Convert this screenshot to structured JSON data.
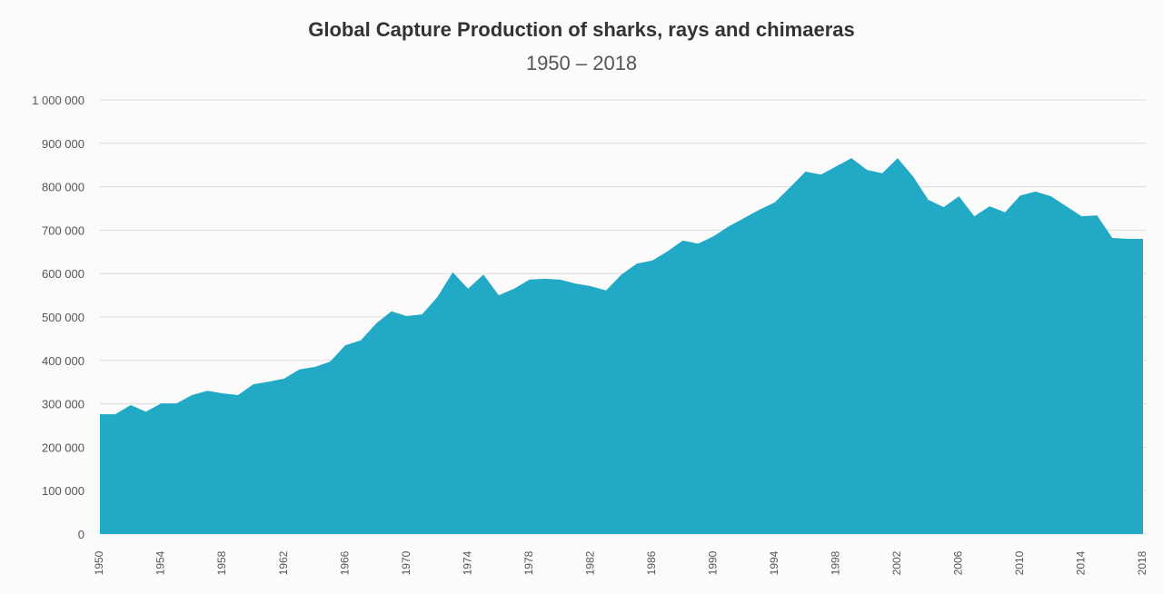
{
  "chart_data": {
    "type": "area",
    "title": "Global Capture Production of sharks, rays and chimaeras",
    "subtitle": "1950 – 2018",
    "xlabel": "",
    "ylabel": "",
    "xlim": [
      1950,
      2018
    ],
    "ylim": [
      0,
      1000000
    ],
    "grid": true,
    "color": "#22a9c5",
    "yticks": [
      0,
      100000,
      200000,
      300000,
      400000,
      500000,
      600000,
      700000,
      800000,
      900000,
      1000000
    ],
    "ytick_labels": [
      "0",
      "100 000",
      "200 000",
      "300 000",
      "400 000",
      "500 000",
      "600 000",
      "700 000",
      "800 000",
      "900 000",
      "1 000 000"
    ],
    "xticks": [
      1950,
      1954,
      1958,
      1962,
      1966,
      1970,
      1974,
      1978,
      1982,
      1986,
      1990,
      1994,
      1998,
      2002,
      2006,
      2010,
      2014,
      2018
    ],
    "xtick_labels": [
      "1950",
      "1954",
      "1958",
      "1962",
      "1966",
      "1970",
      "1974",
      "1978",
      "1982",
      "1986",
      "1990",
      "1994",
      "1998",
      "2002",
      "2006",
      "2010",
      "2014",
      "2018"
    ],
    "x": [
      1950,
      1951,
      1952,
      1953,
      1954,
      1955,
      1956,
      1957,
      1958,
      1959,
      1960,
      1961,
      1962,
      1963,
      1964,
      1965,
      1966,
      1967,
      1968,
      1969,
      1970,
      1971,
      1972,
      1973,
      1974,
      1975,
      1976,
      1977,
      1978,
      1979,
      1980,
      1981,
      1982,
      1983,
      1984,
      1985,
      1986,
      1987,
      1988,
      1989,
      1990,
      1991,
      1992,
      1993,
      1994,
      1995,
      1996,
      1997,
      1998,
      1999,
      2000,
      2001,
      2002,
      2003,
      2004,
      2005,
      2006,
      2007,
      2008,
      2009,
      2010,
      2011,
      2012,
      2013,
      2014,
      2015,
      2016,
      2017,
      2018
    ],
    "values": [
      276000,
      276000,
      297000,
      282000,
      301000,
      301000,
      320000,
      330000,
      324000,
      320000,
      345000,
      351000,
      358000,
      379000,
      385000,
      397000,
      435000,
      446000,
      485000,
      513000,
      502000,
      506000,
      546000,
      603000,
      565000,
      598000,
      550000,
      565000,
      586000,
      588000,
      586000,
      577000,
      571000,
      561000,
      598000,
      623000,
      630000,
      651000,
      676000,
      669000,
      686000,
      709000,
      728000,
      747000,
      764000,
      799000,
      835000,
      828000,
      847000,
      866000,
      839000,
      831000,
      866000,
      824000,
      770000,
      753000,
      778000,
      732000,
      755000,
      741000,
      780000,
      789000,
      778000,
      755000,
      732000,
      734000,
      682000,
      680000,
      680000
    ]
  }
}
